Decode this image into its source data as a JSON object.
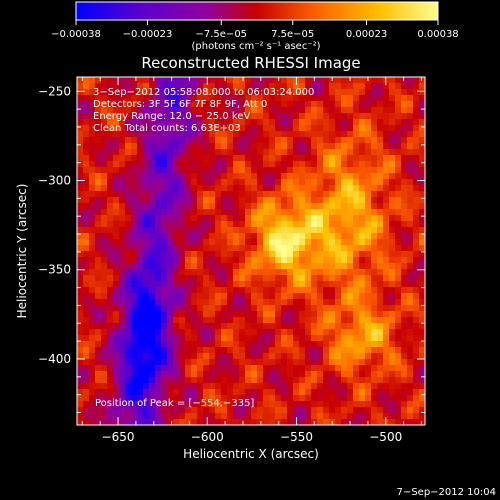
{
  "chart_data": {
    "type": "heatmap",
    "title": "Reconstructed RHESSI Image",
    "xlabel": "Heliocentric X (arcsec)",
    "ylabel": "Heliocentric Y (arcsec)",
    "xlim": [
      -673,
      -478
    ],
    "ylim": [
      -437,
      -242
    ],
    "x_ticks": [
      -650,
      -600,
      -550,
      -500
    ],
    "x_tick_labels": [
      "−650",
      "−600",
      "−550",
      "−500"
    ],
    "y_ticks": [
      -250,
      -300,
      -350,
      -400
    ],
    "y_tick_labels": [
      "−250",
      "−300",
      "−350",
      "−400"
    ],
    "colorbar": {
      "range": [
        -0.00038,
        0.00038
      ],
      "tick_labels": [
        "−0.00038",
        "−0.00023",
        "−7.5e−05",
        "7.5e−05",
        "0.00023",
        "0.00038"
      ],
      "units_label": "(photons cm⁻² s⁻¹ asec⁻²)",
      "colors": [
        "#0000ff",
        "#5a00d0",
        "#9000a0",
        "#c80000",
        "#ff6000",
        "#ffc000",
        "#ffff90"
      ]
    },
    "annotations": [
      "3−Sep−2012 05:58:08.000 to 06:03:24.000",
      "Detectors: 3F 5F 6F 7F 8F 9F, Att 0",
      "Energy Range: 12.0 − 25.0 keV",
      "Clean    Total counts: 6.63E+03"
    ],
    "peak_label": "Position of Peak = [−554,−335]",
    "peak": [
      -554,
      -335
    ],
    "footer": "7−Sep−2012 10:04"
  }
}
